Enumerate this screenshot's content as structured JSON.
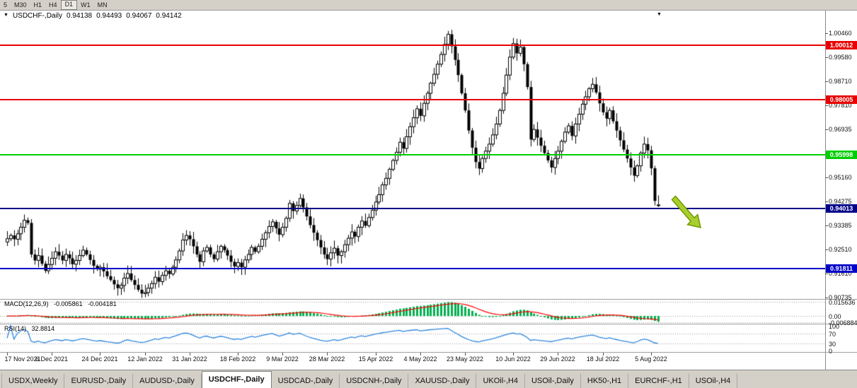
{
  "toolbar": {
    "timeframes": [
      "5",
      "M30",
      "H1",
      "H4",
      "D1",
      "W1",
      "MN"
    ],
    "active": "D1"
  },
  "legend": {
    "symbol": "USDCHF-,Daily",
    "open": "0.94138",
    "high": "0.94493",
    "low": "0.94067",
    "close": "0.94142"
  },
  "icons": {
    "dropdown": "▼",
    "shift": "▼"
  },
  "hlines": [
    {
      "name": "resistance-upper",
      "price": "1.00012",
      "value": 1.00012,
      "color": "#e80000"
    },
    {
      "name": "resistance-mid",
      "price": "0.98005",
      "value": 0.98005,
      "color": "#e80000"
    },
    {
      "name": "pivot-green",
      "price": "0.95998",
      "value": 0.95998,
      "color": "#00ce00"
    },
    {
      "name": "support-upper",
      "price": "0.94013",
      "value": 0.94013,
      "color": "#000089"
    },
    {
      "name": "support-lower",
      "price": "0.91811",
      "value": 0.91811,
      "color": "#0000c8"
    }
  ],
  "macd_panel": {
    "title": "MACD(12,26,9)",
    "value_main": "-0.005861",
    "value_signal": "-0.004181",
    "hist_color": "#00b050",
    "signal_color": "#ff0000",
    "axis": [
      {
        "label": "0.015636",
        "value": 0.015636
      },
      {
        "label": "0.00",
        "value": 0
      },
      {
        "label": "-0.006884",
        "value": -0.006884
      }
    ]
  },
  "rsi_panel": {
    "title": "RSI(14)",
    "value": "32.8814",
    "line_color": "#2e86de",
    "levels": [
      70,
      30
    ],
    "axis": [
      {
        "label": "100",
        "value": 100
      },
      {
        "label": "70",
        "value": 70
      },
      {
        "label": "30",
        "value": 30
      },
      {
        "label": "0",
        "value": 0
      }
    ]
  },
  "annotations": {
    "arrow_color": "#a8cf2d",
    "arrow_stroke": "#6f9a00"
  },
  "tabs": [
    {
      "label": "USDX,Weekly",
      "active": false
    },
    {
      "label": "EURUSD-,Daily",
      "active": false
    },
    {
      "label": "AUDUSD-,Daily",
      "active": false
    },
    {
      "label": "USDCHF-,Daily",
      "active": true
    },
    {
      "label": "USDCAD-,Daily",
      "active": false
    },
    {
      "label": "USDCNH-,Daily",
      "active": false
    },
    {
      "label": "XAUUSD-,Daily",
      "active": false
    },
    {
      "label": "UKOil-,H4",
      "active": false
    },
    {
      "label": "USOil-,Daily",
      "active": false
    },
    {
      "label": "HK50-,H1",
      "active": false
    },
    {
      "label": "EURCHF-,H1",
      "active": false
    },
    {
      "label": "USOil-,H4",
      "active": false
    }
  ],
  "chart_data": {
    "type": "candlestick",
    "title": "USDCHF-,Daily",
    "symbol": "USDCHF-",
    "timeframe": "Daily",
    "ylim": [
      0.90735,
      1.0046
    ],
    "y_axis_labels": [
      "1.00460",
      "0.99580",
      "0.98710",
      "0.97810",
      "0.96935",
      "0.96040",
      "0.95160",
      "0.94275",
      "0.93385",
      "0.92510",
      "0.91610",
      "0.90735"
    ],
    "date_ticks": [
      {
        "label": "17 Nov 2021",
        "i": 0
      },
      {
        "label": "6 Dec 2021",
        "i": 13
      },
      {
        "label": "24 Dec 2021",
        "i": 27
      },
      {
        "label": "12 Jan 2022",
        "i": 40
      },
      {
        "label": "31 Jan 2022",
        "i": 53
      },
      {
        "label": "18 Feb 2022",
        "i": 67
      },
      {
        "label": "9 Mar 2022",
        "i": 80
      },
      {
        "label": "28 Mar 2022",
        "i": 93
      },
      {
        "label": "15 Apr 2022",
        "i": 107
      },
      {
        "label": "4 May 2022",
        "i": 120
      },
      {
        "label": "23 May 2022",
        "i": 133
      },
      {
        "label": "10 Jun 2022",
        "i": 147
      },
      {
        "label": "29 Jun 2022",
        "i": 160
      },
      {
        "label": "18 Jul 2022",
        "i": 173
      },
      {
        "label": "5 Aug 2022",
        "i": 187
      }
    ],
    "horizontal_levels": [
      1.00012,
      0.98005,
      0.95998,
      0.94013,
      0.91811
    ],
    "first_open": 0.9278,
    "ohlc_last": {
      "open": 0.94138,
      "high": 0.94493,
      "low": 0.94067,
      "close": 0.94142
    },
    "closes": [
      0.929,
      0.9302,
      0.9288,
      0.9308,
      0.9332,
      0.9358,
      0.9348,
      0.9232,
      0.921,
      0.9228,
      0.9198,
      0.9172,
      0.9195,
      0.9218,
      0.9242,
      0.9228,
      0.921,
      0.9232,
      0.9218,
      0.9196,
      0.921,
      0.9228,
      0.9248,
      0.9232,
      0.9212,
      0.919,
      0.9178,
      0.9185,
      0.917,
      0.9152,
      0.9138,
      0.9122,
      0.9108,
      0.9118,
      0.9145,
      0.9162,
      0.9138,
      0.912,
      0.9102,
      0.9088,
      0.9092,
      0.9108,
      0.9125,
      0.9148,
      0.9132,
      0.9155,
      0.9172,
      0.916,
      0.9185,
      0.9212,
      0.9245,
      0.9285,
      0.9302,
      0.9288,
      0.9262,
      0.9232,
      0.9205,
      0.9245,
      0.9258,
      0.9232,
      0.9215,
      0.9242,
      0.9262,
      0.9248,
      0.9228,
      0.9205,
      0.9188,
      0.9202,
      0.9185,
      0.9212,
      0.9232,
      0.9258,
      0.9242,
      0.9262,
      0.9288,
      0.9312,
      0.9335,
      0.9352,
      0.9328,
      0.9305,
      0.9332,
      0.9365,
      0.942,
      0.9392,
      0.9412,
      0.9438,
      0.9405,
      0.9372,
      0.934,
      0.9312,
      0.9285,
      0.9258,
      0.9232,
      0.9215,
      0.9238,
      0.9255,
      0.9228,
      0.9242,
      0.9268,
      0.9292,
      0.9315,
      0.9298,
      0.9332,
      0.9355,
      0.9338,
      0.9368,
      0.9395,
      0.9425,
      0.9452,
      0.9488,
      0.9512,
      0.9545,
      0.9578,
      0.9608,
      0.9645,
      0.9622,
      0.9665,
      0.9702,
      0.9735,
      0.9768,
      0.9742,
      0.9788,
      0.9825,
      0.9862,
      0.9895,
      0.9932,
      0.9968,
      1.0005,
      1.0042,
      0.9998,
      0.9948,
      0.9892,
      0.9825,
      0.9762,
      0.9688,
      0.9625,
      0.9572,
      0.9548,
      0.9585,
      0.9612,
      0.9638,
      0.9672,
      0.9712,
      0.9762,
      0.9825,
      0.9892,
      0.9958,
      1.0008,
      0.9972,
      0.9995,
      0.9932,
      0.9848,
      0.9655,
      0.9692,
      0.9662,
      0.9632,
      0.9605,
      0.9578,
      0.9552,
      0.9585,
      0.9612,
      0.9648,
      0.9682,
      0.9705,
      0.9668,
      0.9712,
      0.9748,
      0.9785,
      0.9812,
      0.9842,
      0.9858,
      0.9828,
      0.9788,
      0.9755,
      0.9732,
      0.9762,
      0.9722,
      0.9688,
      0.9652,
      0.9618,
      0.9585,
      0.9552,
      0.9522,
      0.9558,
      0.9605,
      0.9638,
      0.9615,
      0.9549,
      0.9429,
      0.94142
    ],
    "indicators": [
      {
        "name": "MACD",
        "params": [
          12,
          26,
          9
        ],
        "last_main": -0.005861,
        "last_signal": -0.004181
      },
      {
        "name": "RSI",
        "params": [
          14
        ],
        "last": 32.8814
      }
    ]
  }
}
